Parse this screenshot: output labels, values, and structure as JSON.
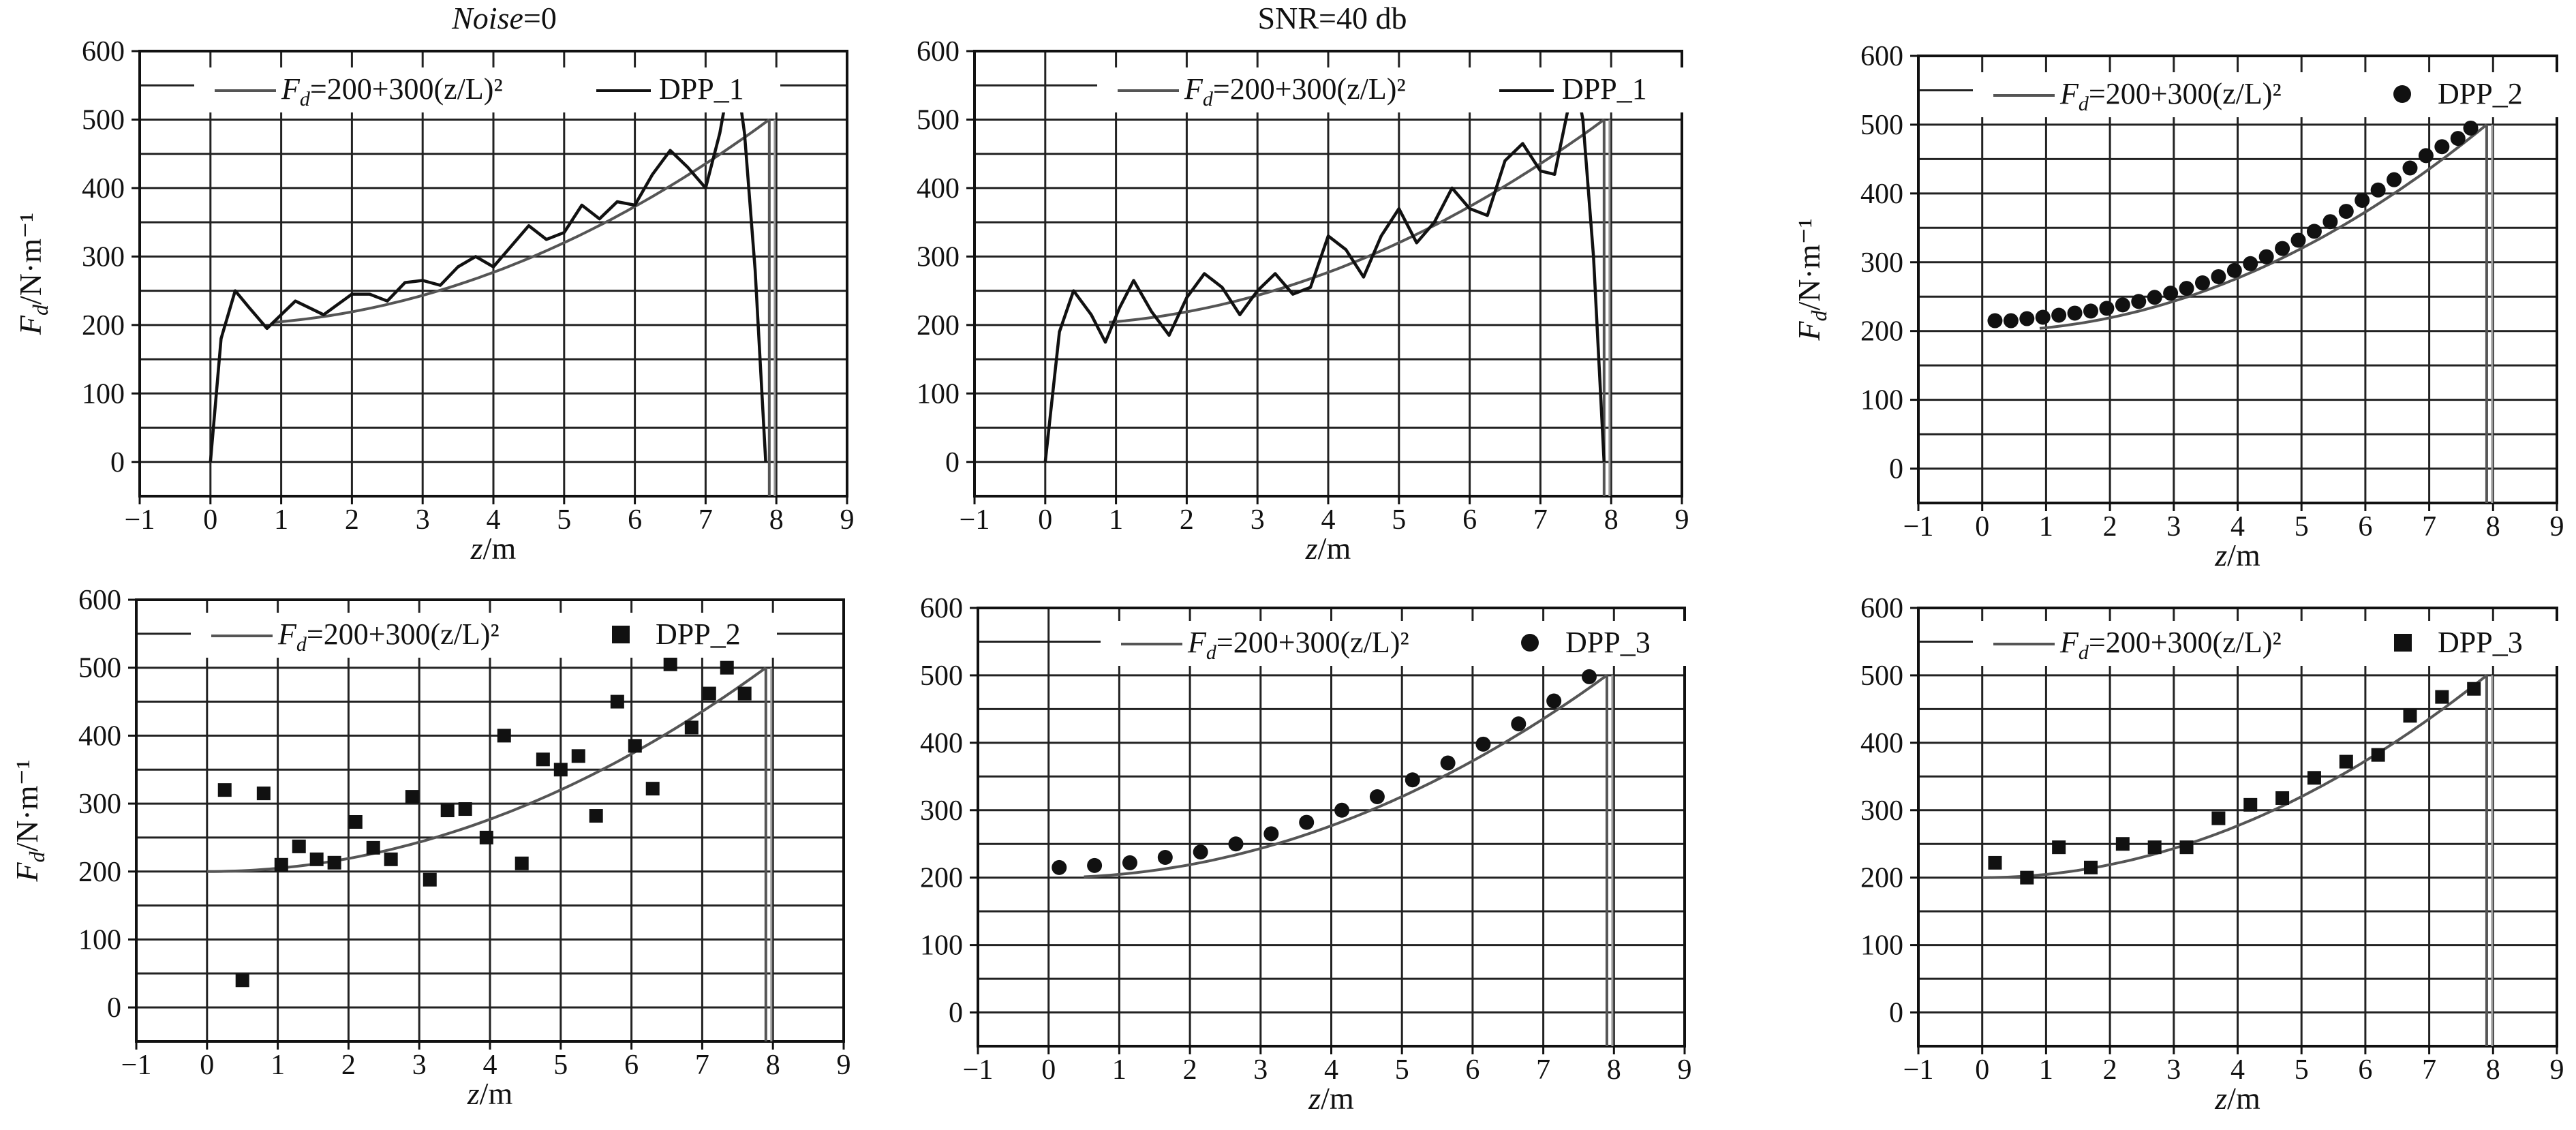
{
  "column_titles": [
    {
      "prefix": "Noise",
      "suffix": "=0",
      "italic_prefix": true
    },
    {
      "prefix": "SNR=40 db",
      "suffix": "",
      "italic_prefix": false
    }
  ],
  "chart_data": [
    {
      "type": "line",
      "xlabel": "z/m",
      "ylabel": "Fd/N·m⁻¹",
      "xlim": [
        -1,
        9
      ],
      "ylim": [
        -50,
        600
      ],
      "xticks": [
        -1,
        0,
        1,
        2,
        3,
        4,
        5,
        6,
        7,
        8,
        9
      ],
      "yticks": [
        0,
        100,
        200,
        300,
        400,
        500,
        600
      ],
      "grid": true,
      "legend": {
        "position": "top",
        "entries": [
          {
            "text_pre": "F",
            "text_sub": "d",
            "text_post": "=200+300(z/L)²",
            "marker": "line"
          },
          {
            "text_pre": "DPP_1",
            "text_sub": "",
            "text_post": "",
            "marker": "line"
          }
        ]
      },
      "reference": {
        "formula": "200+300(z/L)^2",
        "L": 7.9,
        "x_start": 0.9,
        "x_end": 7.9
      },
      "series": [
        {
          "style": "line",
          "x": [
            0.0,
            0.15,
            0.35,
            0.55,
            0.8,
            1.0,
            1.2,
            1.4,
            1.6,
            1.8,
            2.0,
            2.25,
            2.5,
            2.75,
            3.0,
            3.25,
            3.5,
            3.75,
            4.0,
            4.25,
            4.5,
            4.75,
            5.0,
            5.25,
            5.5,
            5.75,
            6.0,
            6.25,
            6.5,
            6.75,
            7.0,
            7.2,
            7.35,
            7.45,
            7.55,
            7.7,
            7.85
          ],
          "y": [
            0,
            180,
            250,
            225,
            195,
            215,
            235,
            225,
            215,
            230,
            245,
            245,
            235,
            262,
            265,
            258,
            285,
            300,
            285,
            315,
            345,
            325,
            335,
            375,
            355,
            380,
            375,
            420,
            455,
            430,
            400,
            480,
            565,
            555,
            480,
            280,
            0
          ]
        }
      ]
    },
    {
      "type": "line",
      "xlabel": "z/m",
      "ylabel": "",
      "xlim": [
        -1,
        9
      ],
      "ylim": [
        -50,
        600
      ],
      "xticks": [
        -1,
        0,
        1,
        2,
        3,
        4,
        5,
        6,
        7,
        8,
        9
      ],
      "yticks": [
        0,
        100,
        200,
        300,
        400,
        500,
        600
      ],
      "grid": true,
      "legend": {
        "position": "top",
        "entries": [
          {
            "text_pre": "F",
            "text_sub": "d",
            "text_post": "=200+300(z/L)²",
            "marker": "line"
          },
          {
            "text_pre": "DPP_1",
            "text_sub": "",
            "text_post": "",
            "marker": "line"
          }
        ]
      },
      "reference": {
        "formula": "200+300(z/L)^2",
        "L": 7.9,
        "x_start": 0.9,
        "x_end": 7.9
      },
      "series": [
        {
          "style": "line",
          "x": [
            0.0,
            0.2,
            0.4,
            0.65,
            0.85,
            1.05,
            1.25,
            1.5,
            1.75,
            2.0,
            2.25,
            2.5,
            2.75,
            3.0,
            3.25,
            3.5,
            3.75,
            4.0,
            4.25,
            4.5,
            4.75,
            5.0,
            5.25,
            5.5,
            5.75,
            6.0,
            6.25,
            6.5,
            6.75,
            7.0,
            7.2,
            7.4,
            7.5,
            7.6,
            7.75,
            7.9
          ],
          "y": [
            0,
            190,
            250,
            215,
            175,
            225,
            265,
            220,
            185,
            240,
            275,
            255,
            215,
            250,
            275,
            245,
            255,
            330,
            310,
            270,
            330,
            370,
            320,
            350,
            400,
            370,
            360,
            440,
            465,
            425,
            420,
            520,
            555,
            500,
            300,
            0
          ]
        }
      ]
    },
    {
      "type": "scatter",
      "xlabel": "z/m",
      "ylabel": "Fd/N·m⁻¹",
      "xlim": [
        -1,
        9
      ],
      "ylim": [
        -50,
        600
      ],
      "xticks": [
        -1,
        0,
        1,
        2,
        3,
        4,
        5,
        6,
        7,
        8,
        9
      ],
      "yticks": [
        0,
        100,
        200,
        300,
        400,
        500,
        600
      ],
      "grid": true,
      "legend": {
        "position": "top",
        "entries": [
          {
            "text_pre": "F",
            "text_sub": "d",
            "text_post": "=200+300(z/L)²",
            "marker": "line"
          },
          {
            "text_pre": "DPP_2",
            "text_sub": "",
            "text_post": "",
            "marker": "circle"
          }
        ]
      },
      "reference": {
        "formula": "200+300(z/L)^2",
        "L": 7.9,
        "x_start": 0.9,
        "x_end": 7.9
      },
      "series": [
        {
          "style": "circle",
          "x": [
            0.2,
            0.45,
            0.7,
            0.95,
            1.2,
            1.45,
            1.7,
            1.95,
            2.2,
            2.45,
            2.7,
            2.95,
            3.2,
            3.45,
            3.7,
            3.95,
            4.2,
            4.45,
            4.7,
            4.95,
            5.2,
            5.45,
            5.7,
            5.95,
            6.2,
            6.45,
            6.7,
            6.95,
            7.2,
            7.45,
            7.65
          ],
          "y": [
            215,
            215,
            218,
            220,
            223,
            226,
            229,
            233,
            238,
            243,
            249,
            255,
            262,
            270,
            279,
            288,
            298,
            308,
            320,
            332,
            345,
            359,
            374,
            390,
            405,
            420,
            437,
            455,
            468,
            480,
            495
          ]
        }
      ]
    },
    {
      "type": "scatter",
      "xlabel": "z/m",
      "ylabel": "Fd/N·m⁻¹",
      "xlim": [
        -1,
        9
      ],
      "ylim": [
        -50,
        600
      ],
      "xticks": [
        -1,
        0,
        1,
        2,
        3,
        4,
        5,
        6,
        7,
        8,
        9
      ],
      "yticks": [
        0,
        100,
        200,
        300,
        400,
        500,
        600
      ],
      "grid": true,
      "legend": {
        "position": "top",
        "entries": [
          {
            "text_pre": "F",
            "text_sub": "d",
            "text_post": "=200+300(z/L)²",
            "marker": "line"
          },
          {
            "text_pre": "DPP_2",
            "text_sub": "",
            "text_post": "",
            "marker": "square"
          }
        ]
      },
      "reference": {
        "formula": "200+300(z/L)^2",
        "L": 7.9,
        "x_start": 0.0,
        "x_end": 7.9
      },
      "series": [
        {
          "style": "square",
          "x": [
            0.25,
            0.5,
            0.8,
            1.05,
            1.3,
            1.55,
            1.8,
            2.1,
            2.35,
            2.6,
            2.9,
            3.15,
            3.4,
            3.65,
            3.95,
            4.2,
            4.45,
            4.75,
            5.0,
            5.25,
            5.5,
            5.8,
            6.05,
            6.3,
            6.55,
            6.85,
            7.1,
            7.35,
            7.6
          ],
          "y": [
            320,
            40,
            315,
            210,
            237,
            218,
            213,
            273,
            235,
            218,
            310,
            188,
            290,
            292,
            250,
            400,
            212,
            365,
            350,
            370,
            282,
            450,
            385,
            322,
            505,
            412,
            462,
            500,
            462
          ]
        }
      ]
    },
    {
      "type": "scatter",
      "xlabel": "z/m",
      "ylabel": "",
      "xlim": [
        -1,
        9
      ],
      "ylim": [
        -50,
        600
      ],
      "xticks": [
        -1,
        0,
        1,
        2,
        3,
        4,
        5,
        6,
        7,
        8,
        9
      ],
      "yticks": [
        0,
        100,
        200,
        300,
        400,
        500,
        600
      ],
      "grid": true,
      "legend": {
        "position": "top",
        "entries": [
          {
            "text_pre": "F",
            "text_sub": "d",
            "text_post": "=200+300(z/L)²",
            "marker": "line"
          },
          {
            "text_pre": "DPP_3",
            "text_sub": "",
            "text_post": "",
            "marker": "circle"
          }
        ]
      },
      "reference": {
        "formula": "200+300(z/L)^2",
        "L": 7.9,
        "x_start": 0.5,
        "x_end": 7.9
      },
      "series": [
        {
          "style": "circle",
          "x": [
            0.15,
            0.65,
            1.15,
            1.65,
            2.15,
            2.65,
            3.15,
            3.65,
            4.15,
            4.65,
            5.15,
            5.65,
            6.15,
            6.65,
            7.15,
            7.65
          ],
          "y": [
            215,
            218,
            222,
            230,
            238,
            250,
            265,
            282,
            300,
            320,
            345,
            370,
            398,
            428,
            462,
            498
          ]
        }
      ]
    },
    {
      "type": "scatter",
      "xlabel": "z/m",
      "ylabel": "",
      "xlim": [
        -1,
        9
      ],
      "ylim": [
        -50,
        600
      ],
      "xticks": [
        -1,
        0,
        1,
        2,
        3,
        4,
        5,
        6,
        7,
        8,
        9
      ],
      "yticks": [
        0,
        100,
        200,
        300,
        400,
        500,
        600
      ],
      "grid": true,
      "legend": {
        "position": "top",
        "entries": [
          {
            "text_pre": "F",
            "text_sub": "d",
            "text_post": "=200+300(z/L)²",
            "marker": "line"
          },
          {
            "text_pre": "DPP_3",
            "text_sub": "",
            "text_post": "",
            "marker": "square"
          }
        ]
      },
      "reference": {
        "formula": "200+300(z/L)^2",
        "L": 7.9,
        "x_start": 0.0,
        "x_end": 7.9
      },
      "series": [
        {
          "style": "square",
          "x": [
            0.2,
            0.7,
            1.2,
            1.7,
            2.2,
            2.7,
            3.2,
            3.7,
            4.2,
            4.7,
            5.2,
            5.7,
            6.2,
            6.7,
            7.2,
            7.7
          ],
          "y": [
            222,
            200,
            245,
            215,
            250,
            245,
            245,
            288,
            308,
            318,
            348,
            372,
            382,
            440,
            468,
            480
          ]
        }
      ]
    }
  ]
}
